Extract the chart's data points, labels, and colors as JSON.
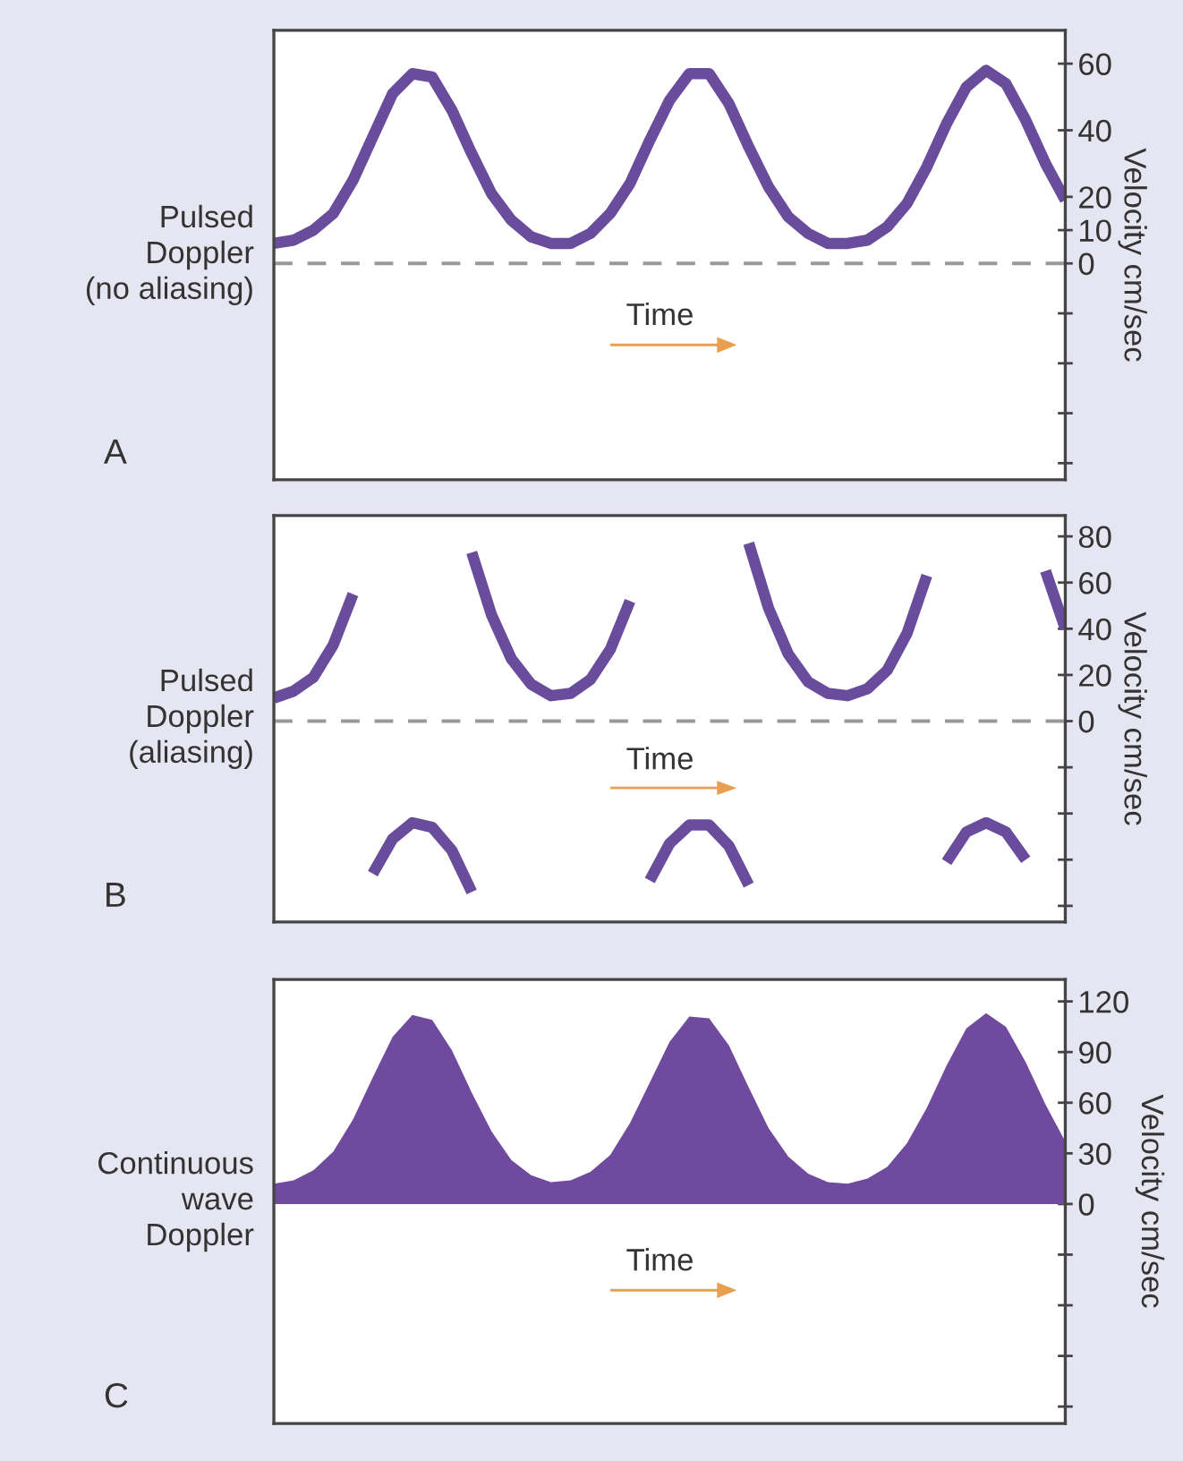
{
  "chart_data": [
    {
      "type": "line",
      "xlabel": "Time",
      "ylabel": "Velocity cm/sec",
      "annotations": [
        "A",
        "Pulsed\nDoppler\n(no aliasing)"
      ],
      "categories": [
        null,
        null,
        null,
        null,
        null,
        null,
        null,
        null,
        null,
        null,
        null,
        null,
        null,
        null,
        null,
        null,
        null,
        null,
        null,
        null,
        null,
        null,
        null,
        null,
        null,
        null,
        null,
        null,
        null,
        null,
        null,
        null,
        null,
        null,
        null,
        null,
        null,
        null,
        null,
        null,
        null
      ],
      "series": [
        {
          "color": "#6a4c9c",
          "values": [
            6,
            7,
            10,
            15,
            25,
            38,
            51,
            57,
            56,
            46,
            33,
            21,
            13,
            8,
            6,
            6,
            9,
            15,
            24,
            37,
            49,
            57,
            57,
            48,
            35,
            23,
            14,
            9,
            6,
            6,
            7,
            11,
            18,
            29,
            42,
            53,
            58,
            54,
            43,
            30,
            19
          ]
        }
      ],
      "ylim": [
        -65,
        70
      ],
      "yticks": [
        60,
        40,
        20,
        10,
        0,
        {
          "value": -15,
          "label": null
        },
        {
          "value": -30,
          "label": null
        },
        {
          "value": -45,
          "label": null
        },
        {
          "value": -60,
          "label": null
        }
      ],
      "ref_lines": [
        {
          "axis": "y",
          "value": 0,
          "color": "#999999",
          "line_style": "dashed"
        }
      ],
      "tick_labels": "y",
      "grid": false,
      "legend": false
    },
    {
      "type": "line",
      "xlabel": "Time",
      "ylabel": "Velocity cm/sec",
      "annotations": [
        "B",
        "Pulsed\nDoppler\n(aliasing)"
      ],
      "categories": [
        null,
        null,
        null,
        null,
        null,
        null,
        null,
        null,
        null,
        null,
        null,
        null,
        null,
        null,
        null,
        null,
        null,
        null,
        null,
        null,
        null,
        null,
        null,
        null,
        null,
        null,
        null,
        null,
        null,
        null,
        null,
        null,
        null,
        null,
        null,
        null,
        null,
        null,
        null,
        null,
        null
      ],
      "series": [
        {
          "color": "#6a4c9c",
          "values": [
            10,
            13,
            19,
            33,
            55,
            null,
            null,
            null,
            null,
            null,
            73,
            46,
            27,
            16,
            11,
            12,
            18,
            31,
            52,
            null,
            null,
            null,
            null,
            null,
            77,
            49,
            29,
            17,
            12,
            11,
            14,
            22,
            38,
            63,
            null,
            null,
            null,
            null,
            null,
            65,
            40
          ]
        },
        {
          "color": "#6a4c9c",
          "values": [
            null,
            null,
            null,
            null,
            null,
            -66,
            -51,
            -44,
            -46,
            -56,
            -74,
            null,
            null,
            null,
            null,
            null,
            null,
            null,
            null,
            -69,
            -53,
            -45,
            -45,
            -54,
            -71,
            null,
            null,
            null,
            null,
            null,
            null,
            null,
            null,
            null,
            -61,
            -48,
            -44,
            -48,
            -60,
            null,
            null
          ]
        }
      ],
      "ylim": [
        -87,
        89
      ],
      "yticks": [
        80,
        60,
        40,
        20,
        0,
        {
          "value": -20,
          "label": null
        },
        {
          "value": -40,
          "label": null
        },
        {
          "value": -60,
          "label": null
        },
        {
          "value": -80,
          "label": null
        }
      ],
      "ref_lines": [
        {
          "axis": "y",
          "value": 0,
          "color": "#999999",
          "line_style": "dashed"
        }
      ],
      "tick_labels": "y",
      "grid": false,
      "legend": false
    },
    {
      "type": "area",
      "xlabel": "Time",
      "ylabel": "Velocity cm/sec",
      "annotations": [
        "C",
        "Continuous\nwave\nDoppler"
      ],
      "categories": [
        null,
        null,
        null,
        null,
        null,
        null,
        null,
        null,
        null,
        null,
        null,
        null,
        null,
        null,
        null,
        null,
        null,
        null,
        null,
        null,
        null,
        null,
        null,
        null,
        null,
        null,
        null,
        null,
        null,
        null,
        null,
        null,
        null,
        null,
        null,
        null,
        null,
        null,
        null,
        null,
        null
      ],
      "series": [
        {
          "color": "#6f4a9e",
          "values": [
            12,
            14,
            20,
            31,
            50,
            75,
            99,
            112,
            109,
            91,
            66,
            43,
            26,
            17,
            13,
            14,
            19,
            29,
            48,
            72,
            96,
            111,
            110,
            94,
            69,
            45,
            28,
            18,
            13,
            12,
            15,
            22,
            36,
            57,
            82,
            104,
            113,
            105,
            84,
            59,
            37
          ]
        }
      ],
      "ylim": [
        -130,
        133
      ],
      "yticks": [
        120,
        90,
        60,
        30,
        0,
        {
          "value": -30,
          "label": null
        },
        {
          "value": -60,
          "label": null
        },
        {
          "value": -90,
          "label": null
        },
        {
          "value": -120,
          "label": null
        }
      ],
      "tick_labels": "y",
      "grid": false,
      "legend": false
    }
  ]
}
